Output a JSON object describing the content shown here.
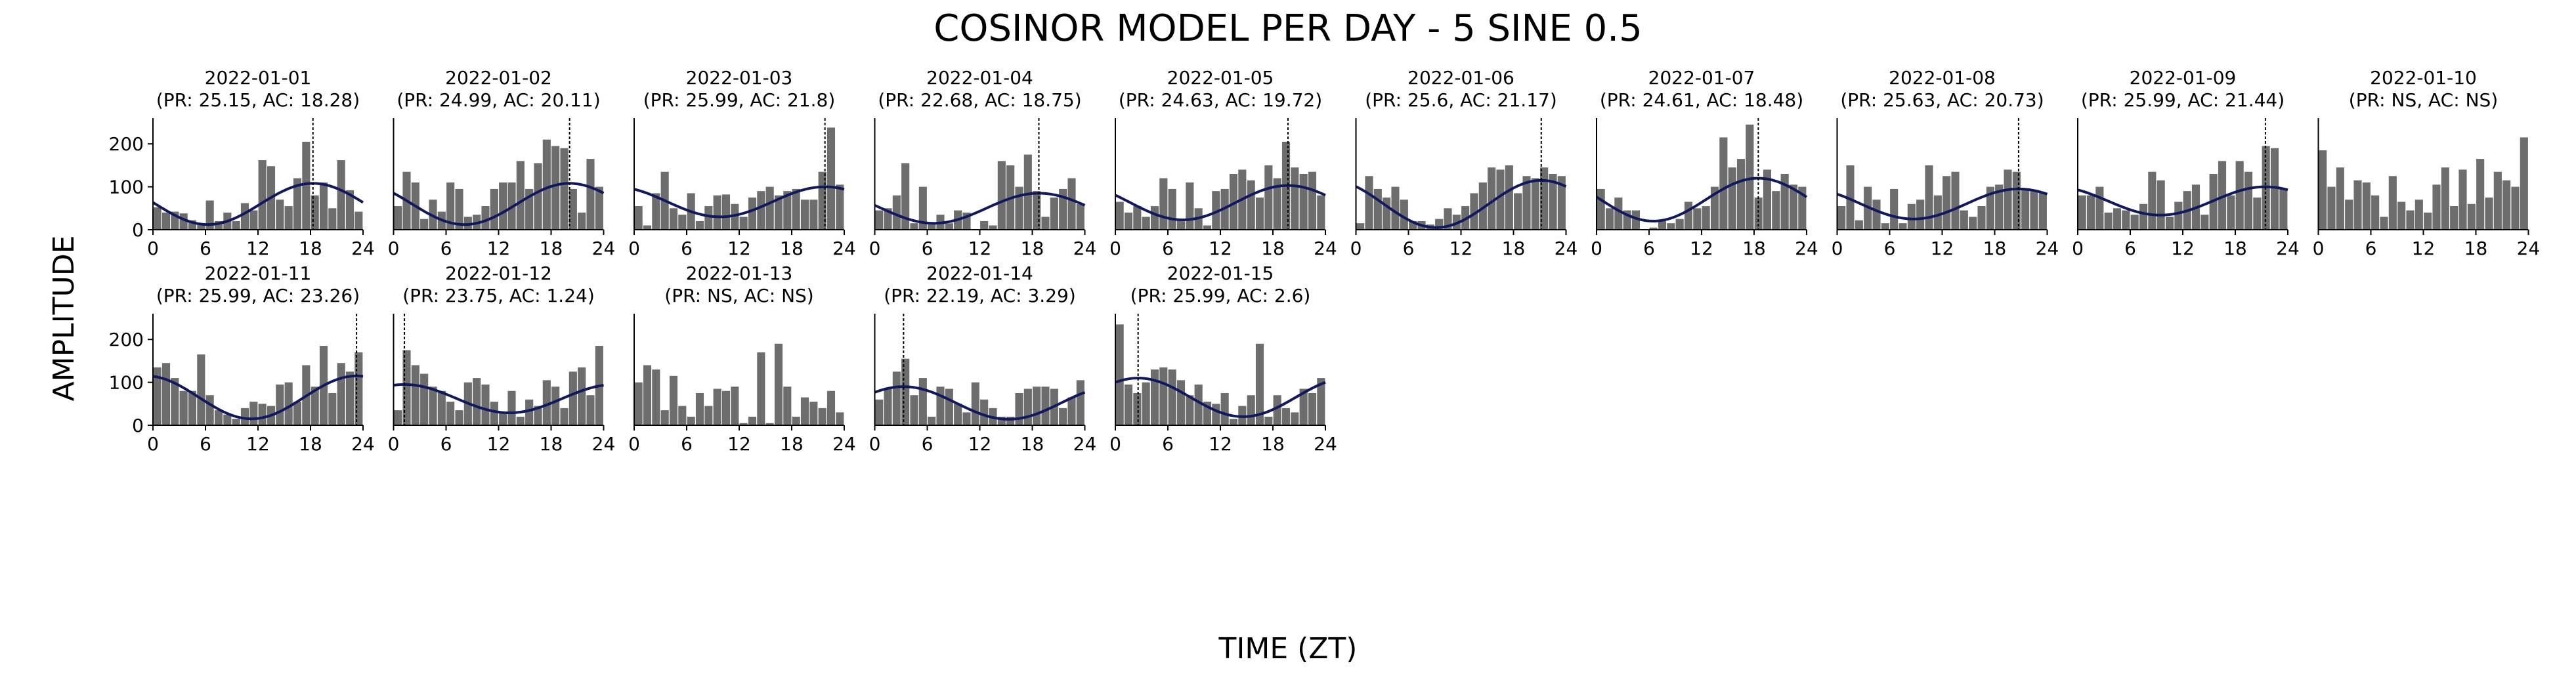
{
  "chart_data": {
    "type": "bar",
    "title": "COSINOR MODEL PER DAY - 5 SINE 0.5",
    "xlabel": "TIME (ZT)",
    "ylabel": "AMPLITUDE",
    "xlim": [
      0,
      24
    ],
    "ylim": [
      0,
      260
    ],
    "xticks": [
      0,
      6,
      12,
      18,
      24
    ],
    "yticks": [
      0,
      100,
      200
    ],
    "colors": {
      "bar": "#6d6d6d",
      "fit": "#12185c",
      "acrophase": "#000000"
    },
    "panels": [
      {
        "date": "2022-01-01",
        "label": "(PR: 25.15, AC: 18.28)",
        "acrophase": 18.28,
        "fit_mesor": 60,
        "fit_amplitude": 48,
        "bars": [
          52,
          40,
          42,
          38,
          22,
          12,
          68,
          20,
          40,
          20,
          62,
          45,
          162,
          148,
          70,
          55,
          120,
          205,
          80,
          110,
          50,
          162,
          92,
          42
        ]
      },
      {
        "date": "2022-01-02",
        "label": "(PR: 24.99, AC: 20.11)",
        "acrophase": 20.11,
        "fit_mesor": 60,
        "fit_amplitude": 48,
        "bars": [
          55,
          135,
          110,
          25,
          70,
          42,
          110,
          95,
          30,
          35,
          55,
          95,
          110,
          110,
          160,
          95,
          155,
          210,
          195,
          190,
          95,
          40,
          165,
          100
        ]
      },
      {
        "date": "2022-01-03",
        "label": "(PR: 25.99, AC: 21.8)",
        "acrophase": 21.8,
        "fit_mesor": 65,
        "fit_amplitude": 35,
        "bars": [
          55,
          10,
          85,
          135,
          50,
          35,
          85,
          20,
          55,
          80,
          82,
          60,
          30,
          75,
          90,
          100,
          80,
          90,
          95,
          70,
          70,
          135,
          238,
          105
        ]
      },
      {
        "date": "2022-01-04",
        "label": "(PR: 22.68, AC: 18.75)",
        "acrophase": 18.75,
        "fit_mesor": 50,
        "fit_amplitude": 35,
        "bars": [
          45,
          50,
          80,
          155,
          15,
          100,
          15,
          35,
          15,
          45,
          40,
          0,
          20,
          10,
          160,
          150,
          100,
          175,
          90,
          30,
          75,
          95,
          120,
          60
        ]
      },
      {
        "date": "2022-01-05",
        "label": "(PR: 24.63, AC: 19.72)",
        "acrophase": 19.72,
        "fit_mesor": 63,
        "fit_amplitude": 40,
        "bars": [
          65,
          40,
          55,
          30,
          55,
          120,
          95,
          22,
          110,
          50,
          10,
          90,
          95,
          130,
          140,
          115,
          75,
          150,
          120,
          205,
          145,
          130,
          135,
          80
        ]
      },
      {
        "date": "2022-01-06",
        "label": "(PR: 25.6, AC: 21.17)",
        "acrophase": 21.17,
        "fit_mesor": 60,
        "fit_amplitude": 55,
        "bars": [
          15,
          125,
          95,
          75,
          100,
          70,
          20,
          20,
          12,
          25,
          50,
          35,
          55,
          85,
          110,
          145,
          140,
          150,
          85,
          125,
          120,
          145,
          130,
          125
        ]
      },
      {
        "date": "2022-01-07",
        "label": "(PR: 24.61, AC: 18.48)",
        "acrophase": 18.48,
        "fit_mesor": 70,
        "fit_amplitude": 50,
        "bars": [
          95,
          50,
          75,
          45,
          45,
          0,
          5,
          20,
          15,
          25,
          65,
          50,
          55,
          100,
          215,
          145,
          165,
          245,
          75,
          140,
          90,
          130,
          105,
          100
        ]
      },
      {
        "date": "2022-01-08",
        "label": "(PR: 25.63, AC: 20.73)",
        "acrophase": 20.73,
        "fit_mesor": 60,
        "fit_amplitude": 35,
        "bars": [
          55,
          150,
          22,
          100,
          70,
          15,
          95,
          15,
          60,
          70,
          150,
          80,
          125,
          135,
          45,
          30,
          55,
          100,
          105,
          140,
          135,
          95,
          90,
          85
        ]
      },
      {
        "date": "2022-01-09",
        "label": "(PR: 25.99, AC: 21.44)",
        "acrophase": 21.44,
        "fit_mesor": 67,
        "fit_amplitude": 33,
        "bars": [
          80,
          80,
          100,
          40,
          50,
          45,
          35,
          60,
          135,
          115,
          30,
          65,
          90,
          105,
          35,
          130,
          160,
          80,
          160,
          135,
          75,
          195,
          190,
          95
        ]
      },
      {
        "date": "2022-01-10",
        "label": "(PR: NS, AC: NS)",
        "acrophase": null,
        "fit_mesor": null,
        "fit_amplitude": null,
        "bars": [
          185,
          100,
          145,
          70,
          115,
          110,
          80,
          30,
          125,
          65,
          45,
          70,
          40,
          105,
          145,
          55,
          140,
          60,
          165,
          75,
          135,
          115,
          100,
          215
        ]
      },
      {
        "date": "2022-01-11",
        "label": "(PR: 25.99, AC: 23.26)",
        "acrophase": 23.26,
        "fit_mesor": 65,
        "fit_amplitude": 50,
        "bars": [
          135,
          145,
          110,
          80,
          80,
          165,
          70,
          35,
          25,
          15,
          40,
          55,
          50,
          45,
          95,
          100,
          55,
          140,
          90,
          185,
          75,
          145,
          125,
          170
        ]
      },
      {
        "date": "2022-01-12",
        "label": "(PR: 23.75, AC: 1.24)",
        "acrophase": 1.24,
        "fit_mesor": 62,
        "fit_amplitude": 33,
        "bars": [
          35,
          175,
          140,
          120,
          90,
          80,
          55,
          35,
          100,
          110,
          95,
          55,
          30,
          80,
          20,
          60,
          45,
          105,
          90,
          40,
          125,
          135,
          70,
          185
        ]
      },
      {
        "date": "2022-01-13",
        "label": "(PR: NS, AC: NS)",
        "acrophase": null,
        "fit_mesor": null,
        "fit_amplitude": null,
        "bars": [
          100,
          140,
          130,
          35,
          115,
          45,
          20,
          75,
          45,
          85,
          80,
          90,
          5,
          20,
          170,
          5,
          190,
          90,
          20,
          65,
          55,
          40,
          80,
          30
        ]
      },
      {
        "date": "2022-01-14",
        "label": "(PR: 22.19, AC: 3.29)",
        "acrophase": 3.29,
        "fit_mesor": 52,
        "fit_amplitude": 38,
        "bars": [
          60,
          85,
          125,
          155,
          70,
          110,
          20,
          90,
          85,
          50,
          30,
          100,
          60,
          40,
          20,
          20,
          75,
          85,
          90,
          90,
          85,
          40,
          65,
          105
        ]
      },
      {
        "date": "2022-01-15",
        "label": "(PR: 25.99, AC: 2.6)",
        "acrophase": 2.6,
        "fit_mesor": 65,
        "fit_amplitude": 45,
        "bars": [
          235,
          95,
          75,
          100,
          130,
          135,
          130,
          105,
          70,
          95,
          55,
          50,
          75,
          15,
          45,
          70,
          190,
          20,
          70,
          40,
          30,
          85,
          75,
          110
        ]
      }
    ]
  }
}
